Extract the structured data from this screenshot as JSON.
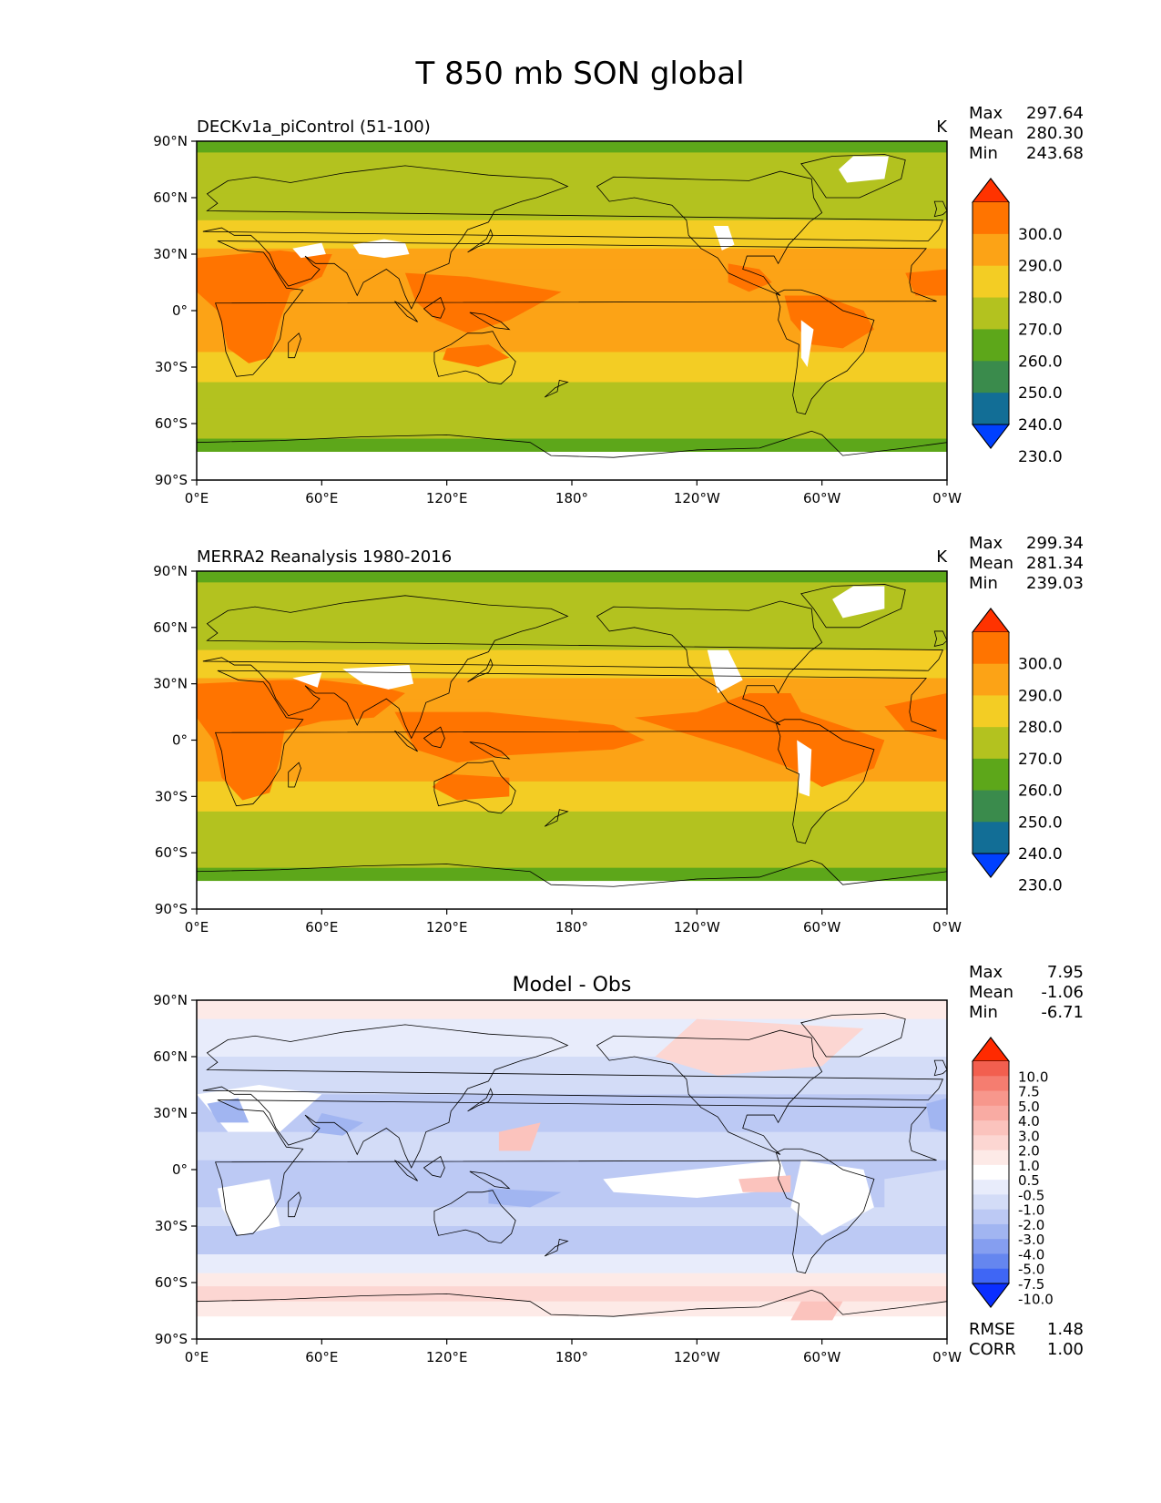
{
  "suptitle": "T 850 mb SON global",
  "x_ticks": [
    "0°E",
    "60°E",
    "120°E",
    "180°",
    "120°W",
    "60°W",
    "0°W"
  ],
  "y_ticks": [
    "90°N",
    "60°N",
    "30°N",
    "0°",
    "30°S",
    "60°S",
    "90°S"
  ],
  "colorbar_abs": {
    "labels": [
      "300.0",
      "290.0",
      "280.0",
      "270.0",
      "260.0",
      "250.0",
      "240.0",
      "230.0"
    ],
    "colors": [
      "#ff3300",
      "#ff7400",
      "#fca316",
      "#f3cd24",
      "#b3c21f",
      "#5da71a",
      "#3a8b4c",
      "#126e96",
      "#0040ff"
    ]
  },
  "colorbar_diff": {
    "labels": [
      "10.0",
      "7.5",
      "5.0",
      "4.0",
      "3.0",
      "2.0",
      "1.0",
      "0.5",
      "-0.5",
      "-1.0",
      "-2.0",
      "-3.0",
      "-4.0",
      "-5.0",
      "-7.5",
      "-10.0"
    ],
    "colors": [
      "#ff2a00",
      "#f25f4f",
      "#f57d70",
      "#f7978c",
      "#f9aba3",
      "#fbc3bd",
      "#fcd6d2",
      "#fdeae7",
      "#ffffff",
      "#e8ecfb",
      "#d3dcf7",
      "#bcc9f4",
      "#a1b5f1",
      "#859ef0",
      "#6586ef",
      "#3f66f5",
      "#0a2eff"
    ]
  },
  "chart_data": [
    {
      "type": "heatmap",
      "title": "DECKv1a_piControl (51-100)",
      "units": "K",
      "stats": {
        "max": "297.64",
        "mean": "280.30",
        "min": "243.68"
      },
      "stat_labels": {
        "max": "Max",
        "mean": "Mean",
        "min": "Min"
      },
      "xlim": [
        0,
        360
      ],
      "ylim": [
        -90,
        90
      ]
    },
    {
      "type": "heatmap",
      "title": "MERRA2 Reanalysis 1980-2016",
      "units": "K",
      "stats": {
        "max": "299.34",
        "mean": "281.34",
        "min": "239.03"
      },
      "stat_labels": {
        "max": "Max",
        "mean": "Mean",
        "min": "Min"
      },
      "xlim": [
        0,
        360
      ],
      "ylim": [
        -90,
        90
      ]
    },
    {
      "type": "heatmap",
      "title": "Model - Obs",
      "stats": {
        "max": "7.95",
        "mean": "-1.06",
        "min": "-6.71",
        "rmse": "1.48",
        "corr": "1.00"
      },
      "stat_labels": {
        "max": "Max",
        "mean": "Mean",
        "min": "Min",
        "rmse": "RMSE",
        "corr": "CORR"
      },
      "xlim": [
        0,
        360
      ],
      "ylim": [
        -90,
        90
      ]
    }
  ]
}
